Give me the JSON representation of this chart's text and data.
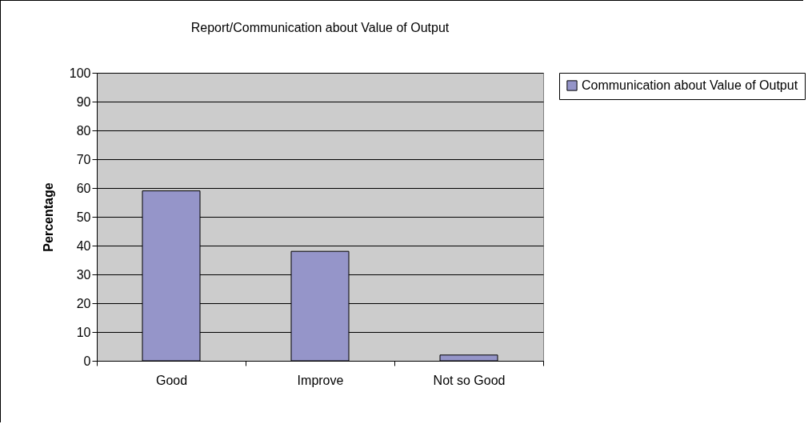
{
  "chart_data": {
    "type": "bar",
    "title": "Report/Communication about Value of Output",
    "ylabel": "Percentage",
    "categories": [
      "Good",
      "Improve",
      "Not so Good"
    ],
    "series": [
      {
        "name": "Communication about Value of Output",
        "color": "#9595c9",
        "values": [
          59,
          38,
          2
        ]
      }
    ],
    "ylim": [
      0,
      100
    ],
    "yticks": [
      0,
      10,
      20,
      30,
      40,
      50,
      60,
      70,
      80,
      90,
      100
    ],
    "grid": "y",
    "legend": "right"
  }
}
